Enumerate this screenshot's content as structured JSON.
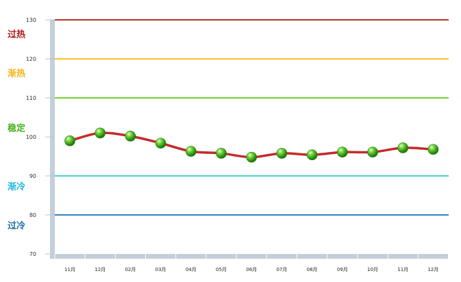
{
  "chart_data": {
    "type": "line",
    "categories": [
      "11月",
      "12月",
      "02月",
      "03月",
      "04月",
      "05月",
      "06月",
      "07月",
      "08月",
      "09月",
      "10月",
      "11月",
      "12月"
    ],
    "values": [
      99,
      101,
      100.2,
      98.4,
      96.3,
      95.8,
      94.8,
      95.8,
      95.4,
      96.1,
      96.1,
      97.2,
      96.8
    ],
    "ylim": [
      70,
      130
    ],
    "yticks": [
      "70",
      "80",
      "90",
      "100",
      "110",
      "120",
      "130"
    ],
    "title": "",
    "xlabel": "",
    "ylabel": "",
    "series_color": "#c42a2a",
    "marker_color": "#3aa41c",
    "grid": false,
    "thresholds": [
      {
        "value": 130,
        "color": "#b83232"
      },
      {
        "value": 120,
        "color": "#f3c22a"
      },
      {
        "value": 110,
        "color": "#72d22c"
      },
      {
        "value": 90,
        "color": "#46d2cc"
      },
      {
        "value": 80,
        "color": "#2f84c4"
      }
    ],
    "zones": [
      {
        "label": "过热",
        "value": 125.5,
        "color": "#b0191e"
      },
      {
        "label": "渐热",
        "value": 115.5,
        "color": "#f2b51c"
      },
      {
        "label": "稳定",
        "value": 101.5,
        "color": "#48b220"
      },
      {
        "label": "渐冷",
        "value": 86.5,
        "color": "#1fb9df"
      },
      {
        "label": "过冷",
        "value": 76.5,
        "color": "#1d6fa8"
      }
    ]
  }
}
